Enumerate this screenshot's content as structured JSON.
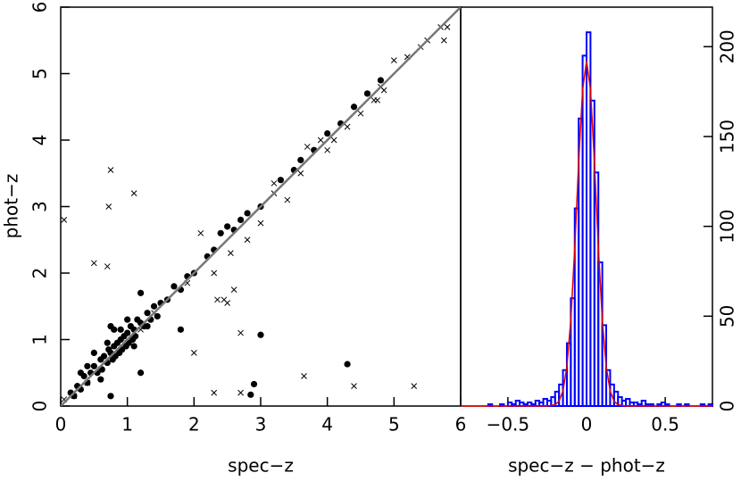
{
  "chart_data": [
    {
      "type": "scatter",
      "xlabel": "spec−z",
      "ylabel": "phot−z",
      "xlim": [
        0,
        6
      ],
      "ylim": [
        0,
        6
      ],
      "xticks": [
        0,
        1,
        2,
        3,
        4,
        5,
        6
      ],
      "yticks": [
        0,
        1,
        2,
        3,
        4,
        5,
        6
      ],
      "reference_line": {
        "x": [
          0,
          6
        ],
        "values": [
          0,
          6
        ],
        "color": "#777777"
      },
      "series": [
        {
          "marker": "dot",
          "color": "#000000",
          "x": [
            0.15,
            0.2,
            0.25,
            0.3,
            0.35,
            0.4,
            0.45,
            0.5,
            0.55,
            0.6,
            0.62,
            0.65,
            0.7,
            0.72,
            0.75,
            0.78,
            0.8,
            0.82,
            0.85,
            0.88,
            0.9,
            0.92,
            0.95,
            0.98,
            1.0,
            1.02,
            1.05,
            1.08,
            1.1,
            1.12,
            1.15,
            1.2,
            1.25,
            1.3,
            1.35,
            1.4,
            1.45,
            1.5,
            0.3,
            0.5,
            0.7,
            0.9,
            1.1,
            1.3,
            0.4,
            0.6,
            0.8,
            1.0,
            1.2,
            0.75,
            1.6,
            1.7,
            1.8,
            1.9,
            2.0,
            2.2,
            2.3,
            2.4,
            2.5,
            2.6,
            2.7,
            2.8,
            3.0,
            3.3,
            3.5,
            3.6,
            3.8,
            4.0,
            4.2,
            4.4,
            4.6,
            4.8,
            3.0,
            4.3,
            2.9,
            2.85,
            0.75,
            1.2,
            1.8
          ],
          "values": [
            0.2,
            0.15,
            0.3,
            0.25,
            0.45,
            0.35,
            0.5,
            0.6,
            0.5,
            0.7,
            0.55,
            0.75,
            0.65,
            0.85,
            0.8,
            0.7,
            0.9,
            0.75,
            0.95,
            0.8,
            1.0,
            0.85,
            1.05,
            0.9,
            1.1,
            0.95,
            1.2,
            1.0,
            1.15,
            1.05,
            1.3,
            1.25,
            1.2,
            1.4,
            1.3,
            1.5,
            1.35,
            1.55,
            0.5,
            0.8,
            0.95,
            1.15,
            0.9,
            1.2,
            0.6,
            0.4,
            1.15,
            1.3,
            1.7,
            0.15,
            1.6,
            1.8,
            1.75,
            1.95,
            2.0,
            2.25,
            2.35,
            2.6,
            2.7,
            2.65,
            2.8,
            2.9,
            3.0,
            3.4,
            3.55,
            3.7,
            3.85,
            4.1,
            4.25,
            4.5,
            4.7,
            4.9,
            1.07,
            0.63,
            0.33,
            0.17,
            1.2,
            0.5,
            1.15
          ]
        },
        {
          "marker": "cross",
          "color": "#000000",
          "x": [
            0.05,
            0.2,
            0.4,
            0.6,
            0.8,
            1.0,
            1.2,
            1.4,
            0.5,
            0.7,
            0.75,
            0.72,
            1.1,
            0.05,
            2.3,
            2.6,
            2.7,
            2.5,
            2.55,
            2.8,
            3.0,
            3.2,
            3.4,
            3.6,
            3.7,
            3.9,
            4.1,
            4.3,
            4.5,
            4.7,
            4.75,
            4.8,
            4.85,
            5.0,
            5.2,
            5.4,
            5.5,
            5.7,
            5.8,
            5.75,
            5.3,
            4.4,
            3.65,
            2.7,
            2.3,
            2.0,
            2.35,
            2.45,
            1.9,
            2.1,
            3.2,
            4.0
          ],
          "values": [
            0.1,
            0.15,
            0.35,
            0.55,
            0.75,
            0.95,
            1.15,
            1.4,
            2.15,
            2.1,
            3.55,
            3.0,
            3.2,
            2.8,
            2.0,
            1.75,
            1.1,
            1.55,
            2.3,
            2.5,
            2.75,
            3.2,
            3.1,
            3.5,
            3.9,
            4.0,
            4.0,
            4.2,
            4.4,
            4.6,
            4.6,
            4.8,
            4.75,
            5.2,
            5.25,
            5.4,
            5.5,
            5.7,
            5.7,
            5.5,
            0.3,
            0.3,
            0.45,
            0.2,
            0.2,
            0.8,
            1.6,
            1.6,
            1.85,
            2.6,
            3.35,
            3.85
          ]
        }
      ]
    },
    {
      "type": "histogram",
      "xlabel": "spec−z − phot−z",
      "color": "#0000ff",
      "xlim": [
        -0.8,
        0.8
      ],
      "ylim": [
        0,
        222
      ],
      "xticks": [
        {
          "value": -0.5,
          "label": "−0.5"
        },
        0,
        0.5
      ],
      "yticks": [
        0,
        50,
        100,
        150,
        200
      ],
      "bins": [
        -0.8,
        -0.775,
        -0.75,
        -0.725,
        -0.7,
        -0.675,
        -0.65,
        -0.625,
        -0.6,
        -0.575,
        -0.55,
        -0.525,
        -0.5,
        -0.475,
        -0.45,
        -0.425,
        -0.4,
        -0.375,
        -0.35,
        -0.325,
        -0.3,
        -0.275,
        -0.25,
        -0.225,
        -0.2,
        -0.175,
        -0.15,
        -0.125,
        -0.1,
        -0.075,
        -0.05,
        -0.025,
        0,
        0.025,
        0.05,
        0.075,
        0.1,
        0.125,
        0.15,
        0.175,
        0.2,
        0.225,
        0.25,
        0.275,
        0.3,
        0.325,
        0.35,
        0.375,
        0.4,
        0.425,
        0.45,
        0.475,
        0.5,
        0.525,
        0.55,
        0.575,
        0.6,
        0.625,
        0.65,
        0.675,
        0.7,
        0.725,
        0.75,
        0.775,
        0.8
      ],
      "values": [
        0,
        0,
        0,
        0,
        0,
        0,
        0,
        1,
        0,
        0,
        1,
        0,
        2,
        1,
        3,
        2,
        1,
        2,
        1,
        3,
        2,
        4,
        3,
        5,
        8,
        12,
        20,
        35,
        60,
        110,
        160,
        195,
        208,
        170,
        130,
        80,
        45,
        20,
        12,
        8,
        5,
        3,
        4,
        2,
        2,
        1,
        3,
        1,
        1,
        0,
        1,
        2,
        1,
        0,
        0,
        1,
        0,
        1,
        0,
        0,
        0,
        1,
        0,
        1
      ],
      "fit": {
        "color": "#e00000",
        "x": [
          -0.8,
          -0.25,
          -0.2,
          -0.175,
          -0.15,
          -0.125,
          -0.1,
          -0.075,
          -0.05,
          -0.025,
          0,
          0.025,
          0.05,
          0.075,
          0.1,
          0.125,
          0.15,
          0.175,
          0.2,
          0.25,
          0.8
        ],
        "values": [
          0,
          0.03,
          0.7,
          2.7,
          8.4,
          22,
          48,
          88,
          136,
          176,
          192,
          176,
          136,
          88,
          48,
          22,
          8.4,
          2.7,
          0.7,
          0.03,
          0
        ]
      }
    }
  ]
}
